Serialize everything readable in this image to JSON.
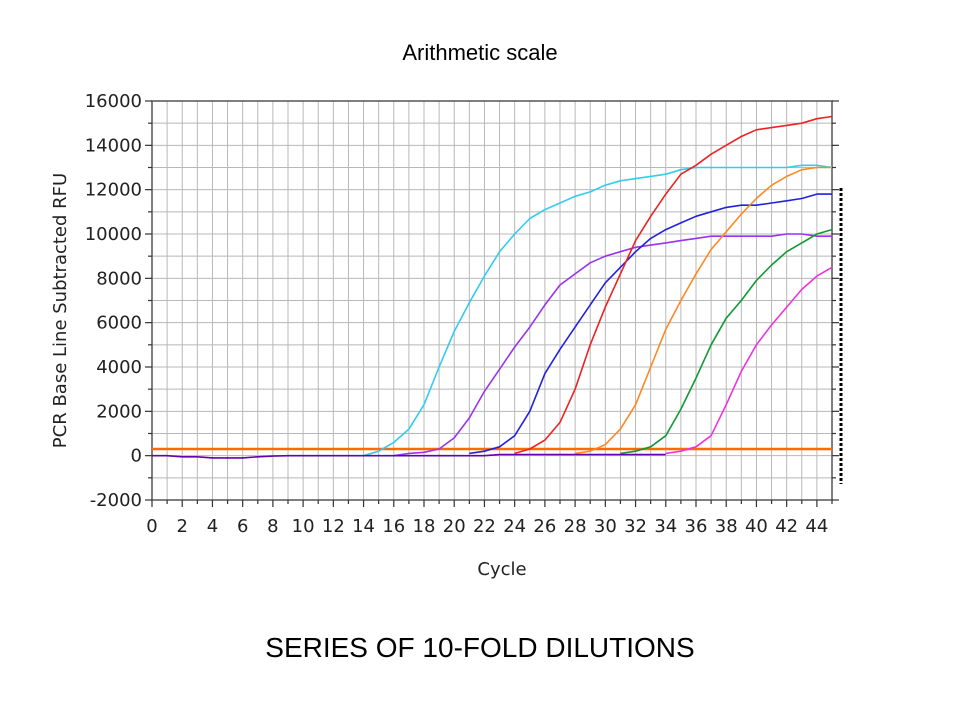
{
  "title": "Arithmetic scale",
  "caption": "SERIES OF 10-FOLD DILUTIONS",
  "chart_data": {
    "type": "line",
    "xlabel": "Cycle",
    "ylabel": "PCR Base Line Subtracted RFU",
    "xlim": [
      0,
      45
    ],
    "ylim": [
      -2000,
      16000
    ],
    "x_ticks": [
      "0",
      "2",
      "4",
      "6",
      "8",
      "10",
      "12",
      "14",
      "16",
      "18",
      "20",
      "22",
      "24",
      "26",
      "28",
      "30",
      "32",
      "34",
      "36",
      "38",
      "40",
      "42",
      "44"
    ],
    "y_ticks": [
      "16000",
      "14000",
      "12000",
      "10000",
      "8000",
      "6000",
      "4000",
      "2000",
      "0",
      "-2000"
    ],
    "grid": true,
    "legend": "none",
    "threshold": {
      "y": 300,
      "color": "#ff6a00"
    },
    "series": [
      {
        "color": "#33ccee",
        "x": [
          14,
          15,
          16,
          17,
          18,
          19,
          20,
          21,
          22,
          23,
          24,
          25,
          26,
          27,
          28,
          29,
          30,
          31,
          32,
          33,
          34,
          35,
          36,
          37,
          38,
          39,
          40,
          41,
          42,
          43,
          44,
          45
        ],
        "y": [
          0,
          200,
          600,
          1200,
          2300,
          4000,
          5600,
          6900,
          8100,
          9200,
          10000,
          10700,
          11100,
          11400,
          11700,
          11900,
          12200,
          12400,
          12500,
          12600,
          12700,
          12900,
          13000,
          13000,
          13000,
          13000,
          13000,
          13000,
          13000,
          13100,
          13100,
          13000
        ]
      },
      {
        "color": "#9933ee",
        "x": [
          16,
          17,
          18,
          19,
          20,
          21,
          22,
          23,
          24,
          25,
          26,
          27,
          28,
          29,
          30,
          31,
          32,
          33,
          34,
          35,
          36,
          37,
          38,
          39,
          40,
          41,
          42,
          43,
          44,
          45
        ],
        "y": [
          0,
          100,
          150,
          300,
          800,
          1700,
          2900,
          3900,
          4900,
          5800,
          6800,
          7700,
          8200,
          8700,
          9000,
          9200,
          9400,
          9500,
          9600,
          9700,
          9800,
          9900,
          9900,
          9900,
          9900,
          9900,
          10000,
          10000,
          9900,
          9900
        ]
      },
      {
        "color": "#2222dd",
        "x": [
          21,
          22,
          23,
          24,
          25,
          26,
          27,
          28,
          29,
          30,
          31,
          32,
          33,
          34,
          35,
          36,
          37,
          38,
          39,
          40,
          41,
          42,
          43,
          44,
          45
        ],
        "y": [
          100,
          200,
          400,
          900,
          2000,
          3700,
          4800,
          5800,
          6800,
          7800,
          8500,
          9200,
          9800,
          10200,
          10500,
          10800,
          11000,
          11200,
          11300,
          11300,
          11400,
          11500,
          11600,
          11800,
          11800
        ]
      },
      {
        "color": "#ee2222",
        "x": [
          24,
          25,
          26,
          27,
          28,
          29,
          30,
          31,
          32,
          33,
          34,
          35,
          36,
          37,
          38,
          39,
          40,
          41,
          42,
          43,
          44,
          45
        ],
        "y": [
          100,
          300,
          700,
          1500,
          3000,
          5000,
          6700,
          8200,
          9700,
          10800,
          11800,
          12700,
          13100,
          13600,
          14000,
          14400,
          14700,
          14800,
          14900,
          15000,
          15200,
          15300
        ]
      },
      {
        "color": "#ff8822",
        "x": [
          28,
          29,
          30,
          31,
          32,
          33,
          34,
          35,
          36,
          37,
          38,
          39,
          40,
          41,
          42,
          43,
          44,
          45
        ],
        "y": [
          100,
          200,
          500,
          1200,
          2300,
          4000,
          5700,
          7000,
          8200,
          9300,
          10100,
          10900,
          11600,
          12200,
          12600,
          12900,
          13000,
          13000
        ]
      },
      {
        "color": "#119933",
        "x": [
          31,
          32,
          33,
          34,
          35,
          36,
          37,
          38,
          39,
          40,
          41,
          42,
          43,
          44,
          45
        ],
        "y": [
          100,
          200,
          400,
          900,
          2100,
          3500,
          5000,
          6200,
          7000,
          7900,
          8600,
          9200,
          9600,
          10000,
          10200
        ]
      },
      {
        "color": "#ee33dd",
        "x": [
          34,
          35,
          36,
          37,
          38,
          39,
          40,
          41,
          42,
          43,
          44,
          45
        ],
        "y": [
          100,
          200,
          400,
          900,
          2300,
          3800,
          5000,
          5900,
          6700,
          7500,
          8100,
          8500
        ]
      },
      {
        "color": "#6600aa",
        "x": [
          0,
          1,
          2,
          3,
          4,
          5,
          6,
          7,
          8,
          9,
          10,
          11,
          12,
          13,
          14,
          15,
          16,
          17,
          18,
          19,
          20,
          21,
          22,
          23,
          24,
          25,
          26,
          27,
          28,
          29,
          30,
          31,
          32,
          33,
          34
        ],
        "y": [
          0,
          0,
          -50,
          -50,
          -100,
          -100,
          -100,
          -50,
          -20,
          0,
          0,
          0,
          0,
          0,
          0,
          0,
          0,
          0,
          0,
          0,
          0,
          0,
          0,
          50,
          50,
          50,
          50,
          50,
          50,
          50,
          50,
          50,
          50,
          50,
          50
        ]
      }
    ]
  }
}
